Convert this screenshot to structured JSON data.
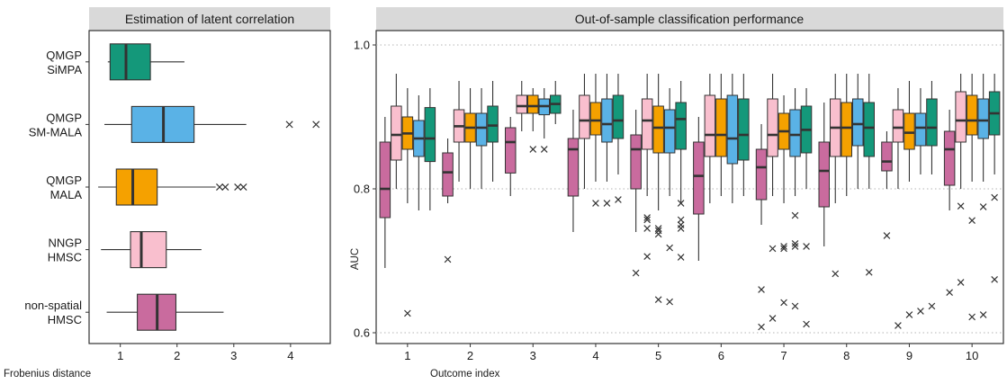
{
  "chart_data": [
    {
      "type": "boxplot",
      "orientation": "horizontal",
      "title": "Estimation of latent correlation",
      "xlabel": "Frobenius distance",
      "xlim": [
        0.45,
        4.7
      ],
      "xticks": [
        "1",
        "2",
        "3",
        "4"
      ],
      "categories": [
        "non-spatial\nHMSC",
        "NNGP\nHMSC",
        "QMGP\nMALA",
        "QMGP\nSM-MALA",
        "QMGP\nSiMPA"
      ],
      "boxes": [
        {
          "category": "QMGP\nSiMPA",
          "color": "#14987a",
          "whisker_low": 0.78,
          "q1": 0.82,
          "median": 1.1,
          "q3": 1.53,
          "whisker_high": 2.13,
          "outliers": []
        },
        {
          "category": "QMGP\nSM-MALA",
          "color": "#5ab2e6",
          "whisker_low": 0.72,
          "q1": 1.2,
          "median": 1.76,
          "q3": 2.3,
          "whisker_high": 3.22,
          "outliers": [
            3.98,
            4.45
          ]
        },
        {
          "category": "QMGP\nMALA",
          "color": "#f5a100",
          "whisker_low": 0.61,
          "q1": 0.93,
          "median": 1.22,
          "q3": 1.65,
          "whisker_high": 2.68,
          "outliers": [
            2.75,
            2.85,
            3.07,
            3.17
          ]
        },
        {
          "category": "NNGP\nHMSC",
          "color": "#f9bfce",
          "whisker_low": 0.66,
          "q1": 1.18,
          "median": 1.37,
          "q3": 1.81,
          "whisker_high": 2.43,
          "outliers": []
        },
        {
          "category": "non-spatial\nHMSC",
          "color": "#c96b9e",
          "whisker_low": 0.76,
          "q1": 1.3,
          "median": 1.65,
          "q3": 1.98,
          "whisker_high": 2.82,
          "outliers": []
        }
      ]
    },
    {
      "type": "boxplot",
      "orientation": "vertical",
      "title": "Out-of-sample classification performance",
      "xlabel": "Outcome index",
      "ylabel": "AUC",
      "ylim": [
        0.585,
        1.02
      ],
      "yticks": [
        "0.6",
        "0.8",
        "1.0"
      ],
      "grid": "horizontal dotted at 0.6, 0.8, 1.0",
      "categories": [
        "1",
        "2",
        "3",
        "4",
        "5",
        "6",
        "7",
        "8",
        "9",
        "10"
      ],
      "series_order": [
        "non-spatial HMSC",
        "NNGP HMSC",
        "QMGP MALA",
        "QMGP SM-MALA",
        "QMGP SiMPA"
      ],
      "series_colors": [
        "#c96b9e",
        "#f9bfce",
        "#f5a100",
        "#5ab2e6",
        "#14987a"
      ],
      "groups": [
        {
          "outcome": "1",
          "boxes": [
            {
              "whisker_low": 0.69,
              "q1": 0.76,
              "median": 0.8,
              "q3": 0.865,
              "whisker_high": 0.9,
              "outliers": []
            },
            {
              "whisker_low": 0.8,
              "q1": 0.84,
              "median": 0.875,
              "q3": 0.915,
              "whisker_high": 0.96,
              "outliers": []
            },
            {
              "whisker_low": 0.78,
              "q1": 0.855,
              "median": 0.877,
              "q3": 0.9,
              "whisker_high": 0.94,
              "outliers": [
                0.627
              ]
            },
            {
              "whisker_low": 0.77,
              "q1": 0.845,
              "median": 0.87,
              "q3": 0.895,
              "whisker_high": 0.93,
              "outliers": []
            },
            {
              "whisker_low": 0.77,
              "q1": 0.838,
              "median": 0.87,
              "q3": 0.913,
              "whisker_high": 0.94,
              "outliers": []
            }
          ]
        },
        {
          "outcome": "2",
          "boxes": [
            {
              "whisker_low": 0.78,
              "q1": 0.79,
              "median": 0.823,
              "q3": 0.85,
              "whisker_high": 0.87,
              "outliers": [
                0.702
              ]
            },
            {
              "whisker_low": 0.81,
              "q1": 0.865,
              "median": 0.887,
              "q3": 0.91,
              "whisker_high": 0.95,
              "outliers": []
            },
            {
              "whisker_low": 0.8,
              "q1": 0.865,
              "median": 0.885,
              "q3": 0.905,
              "whisker_high": 0.94,
              "outliers": []
            },
            {
              "whisker_low": 0.8,
              "q1": 0.86,
              "median": 0.885,
              "q3": 0.905,
              "whisker_high": 0.94,
              "outliers": []
            },
            {
              "whisker_low": 0.81,
              "q1": 0.865,
              "median": 0.888,
              "q3": 0.915,
              "whisker_high": 0.95,
              "outliers": []
            }
          ]
        },
        {
          "outcome": "3",
          "boxes": [
            {
              "whisker_low": 0.79,
              "q1": 0.822,
              "median": 0.865,
              "q3": 0.885,
              "whisker_high": 0.9,
              "outliers": []
            },
            {
              "whisker_low": 0.88,
              "q1": 0.905,
              "median": 0.915,
              "q3": 0.93,
              "whisker_high": 0.95,
              "outliers": []
            },
            {
              "whisker_low": 0.88,
              "q1": 0.905,
              "median": 0.915,
              "q3": 0.93,
              "whisker_high": 0.94,
              "outliers": [
                0.855
              ]
            },
            {
              "whisker_low": 0.87,
              "q1": 0.903,
              "median": 0.915,
              "q3": 0.925,
              "whisker_high": 0.94,
              "outliers": [
                0.855
              ]
            },
            {
              "whisker_low": 0.89,
              "q1": 0.905,
              "median": 0.918,
              "q3": 0.93,
              "whisker_high": 0.95,
              "outliers": []
            }
          ]
        },
        {
          "outcome": "4",
          "boxes": [
            {
              "whisker_low": 0.74,
              "q1": 0.79,
              "median": 0.855,
              "q3": 0.87,
              "whisker_high": 0.91,
              "outliers": []
            },
            {
              "whisker_low": 0.8,
              "q1": 0.87,
              "median": 0.895,
              "q3": 0.93,
              "whisker_high": 0.96,
              "outliers": []
            },
            {
              "whisker_low": 0.81,
              "q1": 0.875,
              "median": 0.895,
              "q3": 0.92,
              "whisker_high": 0.96,
              "outliers": [
                0.78
              ]
            },
            {
              "whisker_low": 0.81,
              "q1": 0.865,
              "median": 0.89,
              "q3": 0.925,
              "whisker_high": 0.96,
              "outliers": [
                0.78
              ]
            },
            {
              "whisker_low": 0.82,
              "q1": 0.87,
              "median": 0.895,
              "q3": 0.93,
              "whisker_high": 0.96,
              "outliers": [
                0.785
              ]
            }
          ]
        },
        {
          "outcome": "5",
          "boxes": [
            {
              "whisker_low": 0.74,
              "q1": 0.8,
              "median": 0.855,
              "q3": 0.875,
              "whisker_high": 0.91,
              "outliers": [
                0.683
              ]
            },
            {
              "whisker_low": 0.79,
              "q1": 0.855,
              "median": 0.895,
              "q3": 0.925,
              "whisker_high": 0.96,
              "outliers": [
                0.76,
                0.757,
                0.745,
                0.706
              ]
            },
            {
              "whisker_low": 0.77,
              "q1": 0.85,
              "median": 0.885,
              "q3": 0.915,
              "whisker_high": 0.96,
              "outliers": [
                0.745,
                0.742,
                0.737,
                0.646
              ]
            },
            {
              "whisker_low": 0.79,
              "q1": 0.85,
              "median": 0.885,
              "q3": 0.91,
              "whisker_high": 0.94,
              "outliers": [
                0.718,
                0.643
              ]
            },
            {
              "whisker_low": 0.78,
              "q1": 0.855,
              "median": 0.897,
              "q3": 0.92,
              "whisker_high": 0.95,
              "outliers": [
                0.78,
                0.757,
                0.75,
                0.745,
                0.705
              ]
            }
          ]
        },
        {
          "outcome": "6",
          "boxes": [
            {
              "whisker_low": 0.7,
              "q1": 0.765,
              "median": 0.818,
              "q3": 0.865,
              "whisker_high": 0.9,
              "outliers": []
            },
            {
              "whisker_low": 0.78,
              "q1": 0.845,
              "median": 0.875,
              "q3": 0.93,
              "whisker_high": 0.96,
              "outliers": []
            },
            {
              "whisker_low": 0.79,
              "q1": 0.845,
              "median": 0.875,
              "q3": 0.925,
              "whisker_high": 0.96,
              "outliers": []
            },
            {
              "whisker_low": 0.78,
              "q1": 0.835,
              "median": 0.87,
              "q3": 0.93,
              "whisker_high": 0.96,
              "outliers": []
            },
            {
              "whisker_low": 0.79,
              "q1": 0.84,
              "median": 0.875,
              "q3": 0.925,
              "whisker_high": 0.96,
              "outliers": []
            }
          ]
        },
        {
          "outcome": "7",
          "boxes": [
            {
              "whisker_low": 0.75,
              "q1": 0.785,
              "median": 0.83,
              "q3": 0.855,
              "whisker_high": 0.89,
              "outliers": [
                0.66,
                0.608
              ]
            },
            {
              "whisker_low": 0.79,
              "q1": 0.845,
              "median": 0.875,
              "q3": 0.925,
              "whisker_high": 0.96,
              "outliers": [
                0.717,
                0.62
              ]
            },
            {
              "whisker_low": 0.78,
              "q1": 0.855,
              "median": 0.88,
              "q3": 0.905,
              "whisker_high": 0.93,
              "outliers": [
                0.72,
                0.717,
                0.642
              ]
            },
            {
              "whisker_low": 0.79,
              "q1": 0.845,
              "median": 0.875,
              "q3": 0.91,
              "whisker_high": 0.94,
              "outliers": [
                0.763,
                0.724,
                0.72,
                0.637
              ]
            },
            {
              "whisker_low": 0.8,
              "q1": 0.85,
              "median": 0.882,
              "q3": 0.915,
              "whisker_high": 0.94,
              "outliers": [
                0.72,
                0.612
              ]
            }
          ]
        },
        {
          "outcome": "8",
          "boxes": [
            {
              "whisker_low": 0.72,
              "q1": 0.775,
              "median": 0.825,
              "q3": 0.865,
              "whisker_high": 0.92,
              "outliers": []
            },
            {
              "whisker_low": 0.78,
              "q1": 0.845,
              "median": 0.885,
              "q3": 0.925,
              "whisker_high": 0.96,
              "outliers": [
                0.682
              ]
            },
            {
              "whisker_low": 0.79,
              "q1": 0.845,
              "median": 0.885,
              "q3": 0.92,
              "whisker_high": 0.96,
              "outliers": []
            },
            {
              "whisker_low": 0.8,
              "q1": 0.86,
              "median": 0.89,
              "q3": 0.925,
              "whisker_high": 0.96,
              "outliers": []
            },
            {
              "whisker_low": 0.8,
              "q1": 0.845,
              "median": 0.885,
              "q3": 0.92,
              "whisker_high": 0.96,
              "outliers": [
                0.684
              ]
            }
          ]
        },
        {
          "outcome": "9",
          "boxes": [
            {
              "whisker_low": 0.8,
              "q1": 0.825,
              "median": 0.838,
              "q3": 0.865,
              "whisker_high": 0.88,
              "outliers": [
                0.735
              ]
            },
            {
              "whisker_low": 0.8,
              "q1": 0.865,
              "median": 0.885,
              "q3": 0.91,
              "whisker_high": 0.94,
              "outliers": [
                0.61
              ]
            },
            {
              "whisker_low": 0.81,
              "q1": 0.855,
              "median": 0.878,
              "q3": 0.905,
              "whisker_high": 0.95,
              "outliers": [
                0.625
              ]
            },
            {
              "whisker_low": 0.82,
              "q1": 0.86,
              "median": 0.885,
              "q3": 0.905,
              "whisker_high": 0.94,
              "outliers": [
                0.63
              ]
            },
            {
              "whisker_low": 0.82,
              "q1": 0.86,
              "median": 0.885,
              "q3": 0.925,
              "whisker_high": 0.95,
              "outliers": [
                0.637
              ]
            }
          ]
        },
        {
          "outcome": "10",
          "boxes": [
            {
              "whisker_low": 0.77,
              "q1": 0.805,
              "median": 0.855,
              "q3": 0.88,
              "whisker_high": 0.91,
              "outliers": [
                0.656
              ]
            },
            {
              "whisker_low": 0.8,
              "q1": 0.865,
              "median": 0.895,
              "q3": 0.935,
              "whisker_high": 0.96,
              "outliers": [
                0.776,
                0.67
              ]
            },
            {
              "whisker_low": 0.81,
              "q1": 0.875,
              "median": 0.895,
              "q3": 0.93,
              "whisker_high": 0.96,
              "outliers": [
                0.756,
                0.622
              ]
            },
            {
              "whisker_low": 0.81,
              "q1": 0.87,
              "median": 0.895,
              "q3": 0.925,
              "whisker_high": 0.96,
              "outliers": [
                0.775,
                0.625
              ]
            },
            {
              "whisker_low": 0.82,
              "q1": 0.875,
              "median": 0.905,
              "q3": 0.935,
              "whisker_high": 0.96,
              "outliers": [
                0.788,
                0.674
              ]
            }
          ]
        }
      ]
    }
  ]
}
